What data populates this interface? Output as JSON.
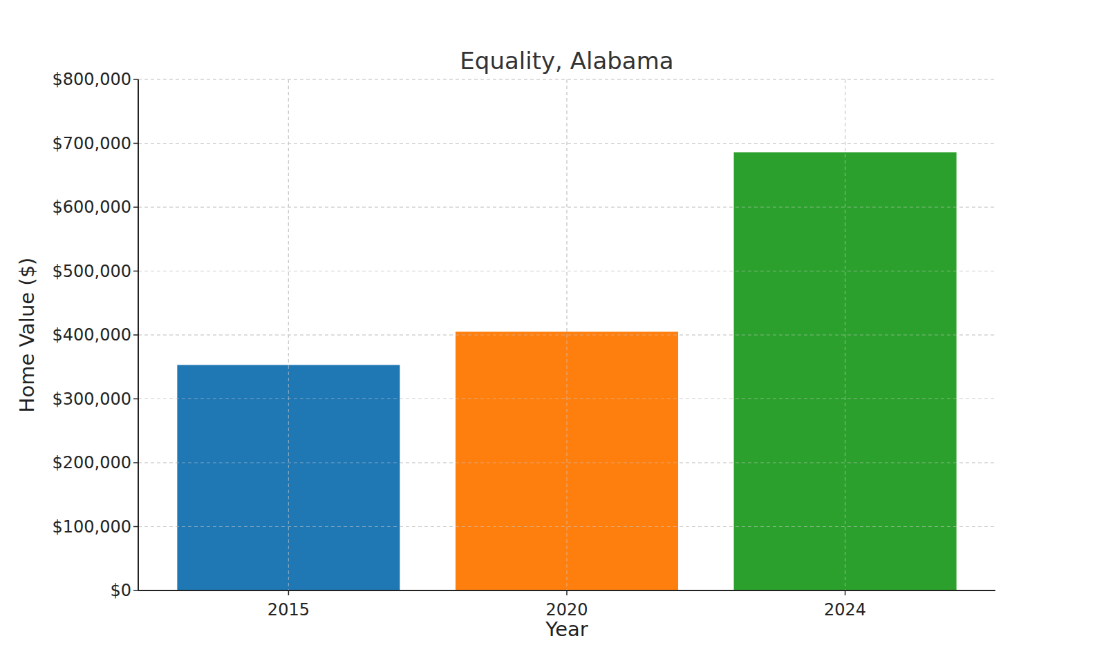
{
  "chart_data": {
    "type": "bar",
    "title": "Equality, Alabama",
    "x_label": "Year",
    "y_label": "Home Value ($)",
    "categories": [
      "2015",
      "2020",
      "2024"
    ],
    "values": [
      353000,
      405000,
      686000
    ],
    "colors": [
      "#1f77b4",
      "#ff7f0e",
      "#2ca02c"
    ],
    "ylim": [
      0,
      800000
    ],
    "yticks": [
      {
        "value": 0,
        "label": "$0"
      },
      {
        "value": 100000,
        "label": "$100,000"
      },
      {
        "value": 200000,
        "label": "$200,000"
      },
      {
        "value": 300000,
        "label": "$300,000"
      },
      {
        "value": 400000,
        "label": "$400,000"
      },
      {
        "value": 500000,
        "label": "$500,000"
      },
      {
        "value": 600000,
        "label": "$600,000"
      },
      {
        "value": 700000,
        "label": "$700,000"
      },
      {
        "value": 800000,
        "label": "$800,000"
      }
    ],
    "grid": true
  }
}
